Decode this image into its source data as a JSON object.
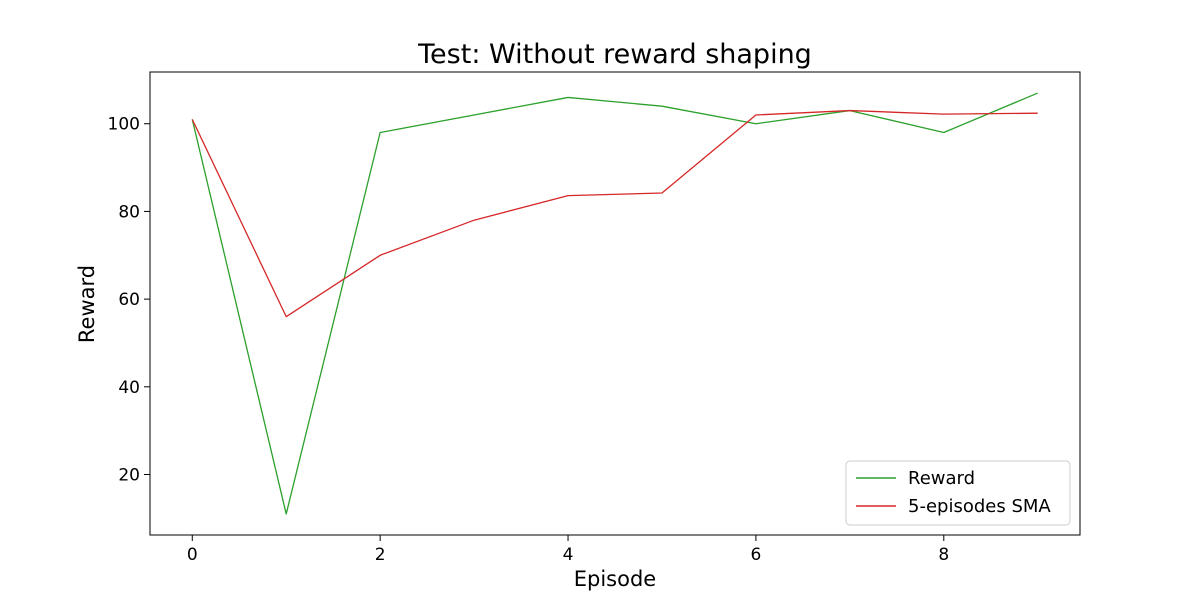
{
  "chart_data": {
    "type": "line",
    "title": "Test: Without reward shaping",
    "xlabel": "Episode",
    "ylabel": "Reward",
    "x": [
      0,
      1,
      2,
      3,
      4,
      5,
      6,
      7,
      8,
      9
    ],
    "series": [
      {
        "name": "Reward",
        "color": "#2ca02c",
        "values": [
          101,
          11,
          98,
          102,
          106,
          104,
          100,
          103,
          98,
          107
        ]
      },
      {
        "name": "5-episodes SMA",
        "color": "#d62728",
        "values": [
          101,
          56,
          70,
          78,
          83.6,
          84.2,
          102,
          103,
          102.2,
          102.4
        ]
      }
    ],
    "xlim": [
      -0.45,
      9.45
    ],
    "ylim": [
      6.2,
      111.8
    ],
    "xticks": [
      0,
      2,
      4,
      6,
      8
    ],
    "yticks": [
      20,
      40,
      60,
      80,
      100
    ],
    "grid": false,
    "legend_position": "lower-right"
  }
}
